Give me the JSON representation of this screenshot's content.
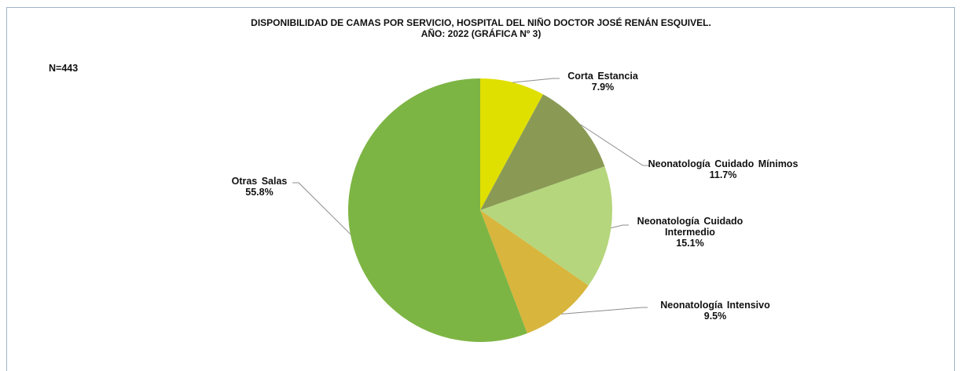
{
  "chart_data": {
    "type": "pie",
    "title": "DISPONIBILIDAD DE CAMAS POR SERVICIO, HOSPITAL DEL NIÑO DOCTOR JOSÉ RENÁN ESQUIVEL.",
    "subtitle": "AÑO:  2022 (GRÁFICA Nº 3)",
    "annotation": "N=443",
    "categories": [
      "Corta Estancia",
      "Neonatología  Cuidado  Mínimos",
      "Neonatología  Cuidado Intermedio",
      "Neonatología Intensivo",
      "Otras Salas"
    ],
    "values": [
      7.9,
      11.7,
      15.1,
      9.5,
      55.8
    ],
    "value_labels": [
      "7.9%",
      "11.7%",
      "15.1%",
      "9.5%",
      "55.8%"
    ],
    "colors": [
      "#e0e000",
      "#8a9a55",
      "#b5d67c",
      "#d8b53c",
      "#7db544"
    ]
  }
}
